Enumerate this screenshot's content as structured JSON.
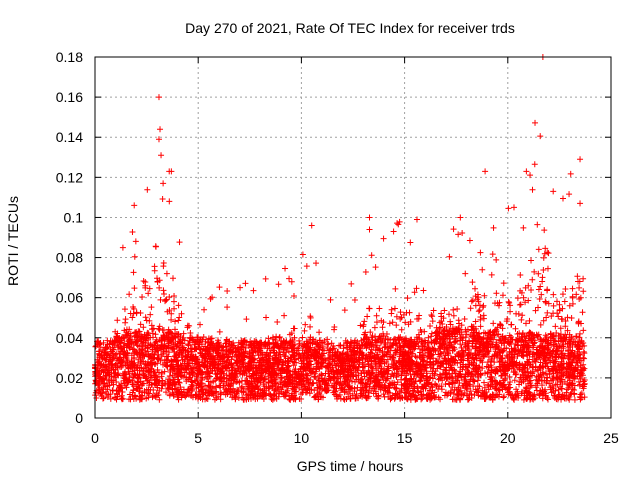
{
  "chart_data": {
    "type": "scatter",
    "title": "Day 270 of 2021, Rate Of TEC Index for receiver trds",
    "xlabel": "GPS time / hours",
    "ylabel": "ROTI / TECUs",
    "xlim": [
      0,
      25
    ],
    "ylim": [
      0,
      0.18
    ],
    "xticks": [
      0,
      5,
      10,
      15,
      20,
      25
    ],
    "yticks": [
      0,
      0.02,
      0.04,
      0.06,
      0.08,
      0.1,
      0.12,
      0.14,
      0.16,
      0.18
    ],
    "grid": true,
    "marker": "+",
    "series_color": "#ff0000",
    "x_extent": [
      0,
      23.75
    ],
    "activity_profile": [
      {
        "x": 0.0,
        "baseline": 0.018,
        "peak": 0.05
      },
      {
        "x": 1.0,
        "baseline": 0.02,
        "peak": 0.078
      },
      {
        "x": 2.0,
        "baseline": 0.022,
        "peak": 0.105
      },
      {
        "x": 3.0,
        "baseline": 0.024,
        "peak": 0.16
      },
      {
        "x": 3.7,
        "baseline": 0.022,
        "peak": 0.12
      },
      {
        "x": 5.0,
        "baseline": 0.02,
        "peak": 0.07
      },
      {
        "x": 7.0,
        "baseline": 0.018,
        "peak": 0.068
      },
      {
        "x": 9.0,
        "baseline": 0.017,
        "peak": 0.075
      },
      {
        "x": 10.5,
        "baseline": 0.019,
        "peak": 0.096
      },
      {
        "x": 12.0,
        "baseline": 0.016,
        "peak": 0.055
      },
      {
        "x": 13.3,
        "baseline": 0.02,
        "peak": 0.1
      },
      {
        "x": 15.5,
        "baseline": 0.02,
        "peak": 0.099
      },
      {
        "x": 17.6,
        "baseline": 0.024,
        "peak": 0.1
      },
      {
        "x": 18.8,
        "baseline": 0.022,
        "peak": 0.123
      },
      {
        "x": 20.3,
        "baseline": 0.022,
        "peak": 0.105
      },
      {
        "x": 20.8,
        "baseline": 0.022,
        "peak": 0.123
      },
      {
        "x": 21.7,
        "baseline": 0.021,
        "peak": 0.18
      },
      {
        "x": 22.2,
        "baseline": 0.022,
        "peak": 0.113
      },
      {
        "x": 23.5,
        "baseline": 0.02,
        "peak": 0.129
      }
    ],
    "notable_points": [
      {
        "x": 3.1,
        "y": 0.16
      },
      {
        "x": 3.15,
        "y": 0.144
      },
      {
        "x": 3.1,
        "y": 0.139
      },
      {
        "x": 3.2,
        "y": 0.131
      },
      {
        "x": 3.7,
        "y": 0.123
      },
      {
        "x": 3.3,
        "y": 0.117
      },
      {
        "x": 3.6,
        "y": 0.108
      },
      {
        "x": 1.9,
        "y": 0.106
      },
      {
        "x": 10.5,
        "y": 0.096
      },
      {
        "x": 13.3,
        "y": 0.1
      },
      {
        "x": 13.3,
        "y": 0.094
      },
      {
        "x": 15.6,
        "y": 0.099
      },
      {
        "x": 17.7,
        "y": 0.1
      },
      {
        "x": 18.9,
        "y": 0.123
      },
      {
        "x": 20.3,
        "y": 0.105
      },
      {
        "x": 20.9,
        "y": 0.123
      },
      {
        "x": 21.7,
        "y": 0.18
      },
      {
        "x": 22.2,
        "y": 0.113
      },
      {
        "x": 23.5,
        "y": 0.129
      },
      {
        "x": 23.5,
        "y": 0.107
      }
    ]
  }
}
